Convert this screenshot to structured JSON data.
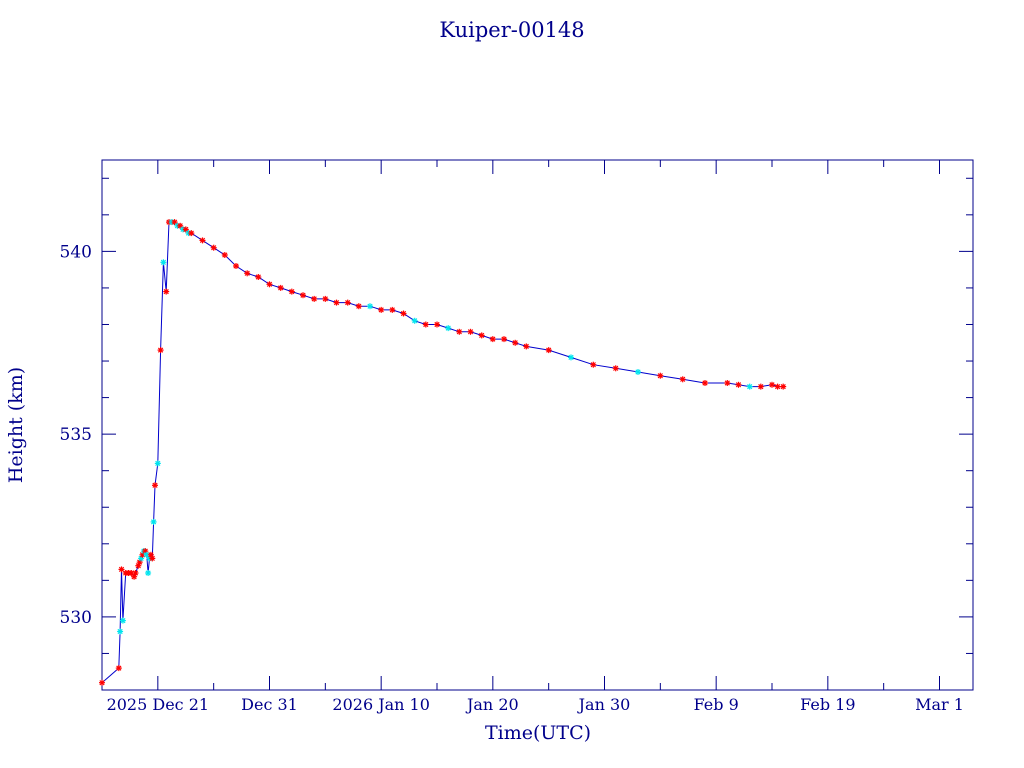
{
  "chart_data": {
    "type": "line",
    "title": "Kuiper-00148",
    "xlabel": "Time(UTC)",
    "ylabel": "Height (km)",
    "x_ticks": [
      "2025 Dec 21",
      "Dec 31",
      "2026 Jan 10",
      "Jan 20",
      "Jan 30",
      "Feb  9",
      "Feb 19",
      "Mar  1"
    ],
    "xlim": [
      "2025-12-16",
      "2026-03-04"
    ],
    "ylim": [
      528.0,
      542.5
    ],
    "y_ticks": [
      530,
      535,
      540
    ],
    "grid": false,
    "legend": "none",
    "colors": {
      "frame": "#00008b",
      "line": "#0000cd",
      "marker_red": "#ff0000",
      "marker_cyan": "#00e5ee"
    },
    "series": [
      {
        "marker_colors": [
          "red",
          "red",
          "cyan",
          "red",
          "cyan",
          "red",
          "red",
          "red",
          "red",
          "red",
          "red",
          "red",
          "cyan",
          "red",
          "cyan",
          "red",
          "cyan",
          "cyan",
          "cyan",
          "red",
          "red",
          "cyan",
          "red",
          "cyan",
          "red",
          "cyan",
          "red",
          "red",
          "cyan",
          "red",
          "cyan",
          "red",
          "cyan",
          "red",
          "cyan",
          "red",
          "red",
          "red",
          "red",
          "red",
          "red",
          "red",
          "red",
          "red",
          "red",
          "red",
          "red",
          "red",
          "red",
          "red",
          "red",
          "cyan",
          "red",
          "red",
          "red",
          "cyan",
          "red",
          "red",
          "cyan",
          "red",
          "red",
          "red",
          "red",
          "red",
          "red",
          "red",
          "red",
          "cyan",
          "red",
          "red",
          "cyan",
          "red",
          "red",
          "red",
          "red",
          "red",
          "cyan",
          "red",
          "red",
          "red",
          "red"
        ],
        "x": [
          "2025-12-16 00:00",
          "2025-12-17 12:00",
          "2025-12-17 15:00",
          "2025-12-17 18:00",
          "2025-12-17 21:00",
          "2025-12-18 03:00",
          "2025-12-18 09:00",
          "2025-12-18 15:00",
          "2025-12-18 21:00",
          "2025-12-19 00:00",
          "2025-12-19 06:00",
          "2025-12-19 09:00",
          "2025-12-19 12:00",
          "2025-12-19 15:00",
          "2025-12-19 18:00",
          "2025-12-19 21:00",
          "2025-12-20 00:00",
          "2025-12-20 03:00",
          "2025-12-20 06:00",
          "2025-12-20 09:00",
          "2025-12-20 12:00",
          "2025-12-20 15:00",
          "2025-12-20 18:00",
          "2025-12-21 00:00",
          "2025-12-21 06:00",
          "2025-12-21 12:00",
          "2025-12-21 18:00",
          "2025-12-22 00:00",
          "2025-12-22 06:00",
          "2025-12-22 12:00",
          "2025-12-22 18:00",
          "2025-12-23 00:00",
          "2025-12-23 06:00",
          "2025-12-23 12:00",
          "2025-12-23 18:00",
          "2025-12-24 00:00",
          "2025-12-25 00:00",
          "2025-12-26 00:00",
          "2025-12-27 00:00",
          "2025-12-28 00:00",
          "2025-12-29 00:00",
          "2025-12-30 00:00",
          "2025-12-31 00:00",
          "2026-01-01 00:00",
          "2026-01-02 00:00",
          "2026-01-03 00:00",
          "2026-01-04 00:00",
          "2026-01-05 00:00",
          "2026-01-06 00:00",
          "2026-01-07 00:00",
          "2026-01-08 00:00",
          "2026-01-09 00:00",
          "2026-01-10 00:00",
          "2026-01-11 00:00",
          "2026-01-12 00:00",
          "2026-01-13 00:00",
          "2026-01-14 00:00",
          "2026-01-15 00:00",
          "2026-01-16 00:00",
          "2026-01-17 00:00",
          "2026-01-18 00:00",
          "2026-01-19 00:00",
          "2026-01-20 00:00",
          "2026-01-21 00:00",
          "2026-01-22 00:00",
          "2026-01-23 00:00",
          "2026-01-25 00:00",
          "2026-01-27 00:00",
          "2026-01-29 00:00",
          "2026-01-31 00:00",
          "2026-02-02 00:00",
          "2026-02-04 00:00",
          "2026-02-06 00:00",
          "2026-02-08 00:00",
          "2026-02-10 00:00",
          "2026-02-11 00:00",
          "2026-02-12 00:00",
          "2026-02-13 00:00",
          "2026-02-14 00:00",
          "2026-02-14 12:00",
          "2026-02-15 00:00"
        ],
        "y": [
          528.2,
          528.6,
          529.6,
          531.3,
          529.9,
          531.2,
          531.2,
          531.2,
          531.1,
          531.2,
          531.4,
          531.5,
          531.6,
          531.7,
          531.8,
          531.8,
          531.7,
          531.2,
          531.6,
          531.7,
          531.6,
          532.6,
          533.6,
          534.2,
          537.3,
          539.7,
          538.9,
          540.8,
          540.8,
          540.8,
          540.7,
          540.7,
          540.6,
          540.6,
          540.5,
          540.5,
          540.3,
          540.1,
          539.9,
          539.6,
          539.4,
          539.3,
          539.1,
          539.0,
          538.9,
          538.8,
          538.7,
          538.7,
          538.6,
          538.6,
          538.5,
          538.5,
          538.4,
          538.4,
          538.3,
          538.1,
          538.0,
          538.0,
          537.9,
          537.8,
          537.8,
          537.7,
          537.6,
          537.6,
          537.5,
          537.4,
          537.3,
          537.1,
          536.9,
          536.8,
          536.7,
          536.6,
          536.5,
          536.4,
          536.4,
          536.35,
          536.3,
          536.3,
          536.35,
          536.3,
          536.3
        ]
      }
    ]
  }
}
